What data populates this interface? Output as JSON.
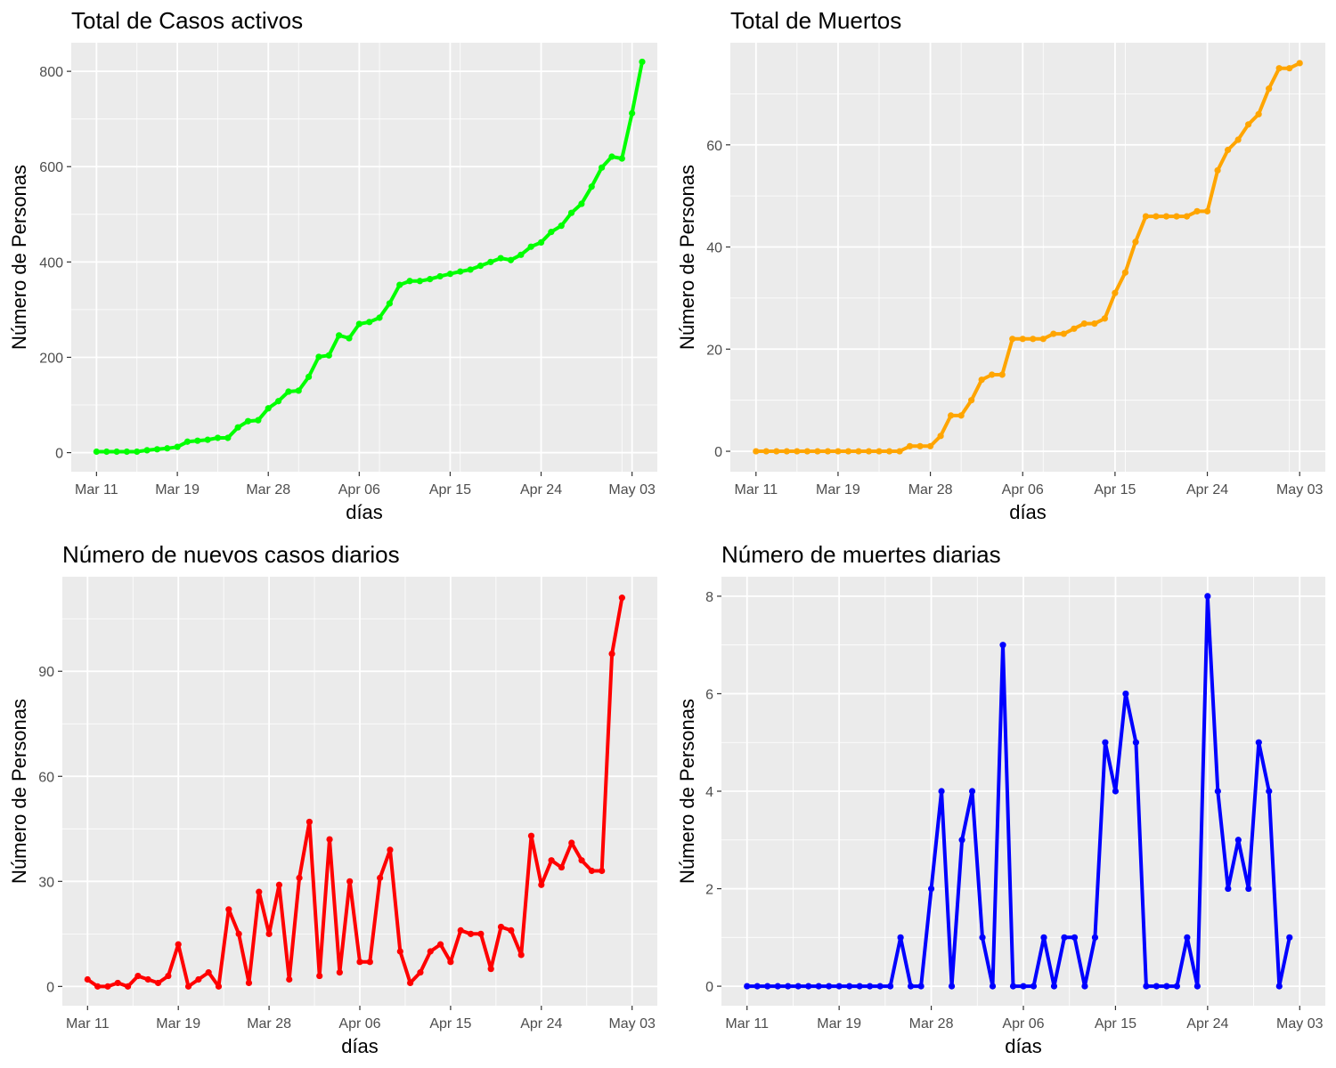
{
  "chart_data": [
    {
      "type": "line",
      "title": "Total de Casos activos",
      "xlabel": "días",
      "ylabel": "Número de Personas",
      "color": "#00ff00",
      "x_start": "Mar 11",
      "x_ticks": [
        {
          "label": "Mar 11",
          "day": 0
        },
        {
          "label": "Mar 19",
          "day": 8
        },
        {
          "label": "Mar 28",
          "day": 17
        },
        {
          "label": "Apr 06",
          "day": 26
        },
        {
          "label": "Apr 15",
          "day": 35
        },
        {
          "label": "Apr 24",
          "day": 44
        },
        {
          "label": "May 03",
          "day": 53
        }
      ],
      "xlim": [
        -2.5,
        55.5
      ],
      "y_ticks": [
        0,
        200,
        400,
        600,
        800
      ],
      "ylim": [
        -40,
        860
      ],
      "values": [
        2,
        2,
        2,
        2,
        2,
        5,
        7,
        9,
        12,
        23,
        25,
        27,
        31,
        31,
        53,
        66,
        68,
        93,
        108,
        128,
        130,
        159,
        201,
        204,
        246,
        240,
        270,
        274,
        283,
        313,
        352,
        360,
        360,
        364,
        370,
        375,
        380,
        384,
        392,
        400,
        408,
        404,
        415,
        432,
        441,
        463,
        476,
        503,
        522,
        558,
        598,
        621,
        617,
        712,
        820
      ]
    },
    {
      "type": "line",
      "title": "Total de Muertos",
      "xlabel": "días",
      "ylabel": "Número de Personas",
      "color": "#ffa500",
      "x_start": "Mar 11",
      "x_ticks": [
        {
          "label": "Mar 11",
          "day": 0
        },
        {
          "label": "Mar 19",
          "day": 8
        },
        {
          "label": "Mar 28",
          "day": 17
        },
        {
          "label": "Apr 06",
          "day": 26
        },
        {
          "label": "Apr 15",
          "day": 35
        },
        {
          "label": "Apr 24",
          "day": 44
        },
        {
          "label": "May 03",
          "day": 53
        }
      ],
      "xlim": [
        -2.5,
        55.5
      ],
      "y_ticks": [
        0,
        20,
        40,
        60
      ],
      "ylim": [
        -4,
        80
      ],
      "values": [
        0,
        0,
        0,
        0,
        0,
        0,
        0,
        0,
        0,
        0,
        0,
        0,
        0,
        0,
        0,
        1,
        1,
        1,
        3,
        7,
        7,
        10,
        14,
        15,
        15,
        22,
        22,
        22,
        22,
        23,
        23,
        24,
        25,
        25,
        26,
        31,
        35,
        41,
        46,
        46,
        46,
        46,
        46,
        47,
        47,
        55,
        59,
        61,
        64,
        66,
        71,
        75,
        75,
        76
      ]
    },
    {
      "type": "line",
      "title": "Número de nuevos casos diarios",
      "xlabel": "días",
      "ylabel": "Número de Personas",
      "color": "#ff0000",
      "x_start": "Mar 11",
      "x_ticks": [
        {
          "label": "Mar 11",
          "day": 0
        },
        {
          "label": "Mar 19",
          "day": 9
        },
        {
          "label": "Mar 28",
          "day": 18
        },
        {
          "label": "Apr 06",
          "day": 27
        },
        {
          "label": "Apr 15",
          "day": 36
        },
        {
          "label": "Apr 24",
          "day": 45
        },
        {
          "label": "May 03",
          "day": 54
        }
      ],
      "xlim": [
        -2.5,
        56.5
      ],
      "y_ticks": [
        0,
        30,
        60,
        90
      ],
      "ylim": [
        -5.5,
        117
      ],
      "values": [
        2,
        0,
        0,
        1,
        0,
        3,
        2,
        1,
        3,
        12,
        0,
        2,
        4,
        0,
        22,
        15,
        1,
        27,
        15,
        29,
        2,
        31,
        47,
        3,
        42,
        4,
        30,
        7,
        7,
        31,
        39,
        10,
        1,
        4,
        10,
        12,
        7,
        16,
        15,
        15,
        5,
        17,
        16,
        9,
        43,
        29,
        36,
        34,
        41,
        36,
        33,
        33,
        95,
        111
      ]
    },
    {
      "type": "line",
      "title": "Número de muertes diarias",
      "xlabel": "días",
      "ylabel": "Número de Personas",
      "color": "#0000ff",
      "x_start": "Mar 11",
      "x_ticks": [
        {
          "label": "Mar 11",
          "day": 0
        },
        {
          "label": "Mar 19",
          "day": 9
        },
        {
          "label": "Mar 28",
          "day": 18
        },
        {
          "label": "Apr 06",
          "day": 27
        },
        {
          "label": "Apr 15",
          "day": 36
        },
        {
          "label": "Apr 24",
          "day": 45
        },
        {
          "label": "May 03",
          "day": 54
        }
      ],
      "xlim": [
        -2.5,
        56.5
      ],
      "y_ticks": [
        0,
        2,
        4,
        6,
        8
      ],
      "ylim": [
        -0.4,
        8.4
      ],
      "values": [
        0,
        0,
        0,
        0,
        0,
        0,
        0,
        0,
        0,
        0,
        0,
        0,
        0,
        0,
        0,
        1,
        0,
        0,
        2,
        4,
        0,
        3,
        4,
        1,
        0,
        7,
        0,
        0,
        0,
        1,
        0,
        1,
        1,
        0,
        1,
        5,
        4,
        6,
        5,
        0,
        0,
        0,
        0,
        1,
        0,
        8,
        4,
        2,
        3,
        2,
        5,
        4,
        0,
        1
      ]
    }
  ]
}
